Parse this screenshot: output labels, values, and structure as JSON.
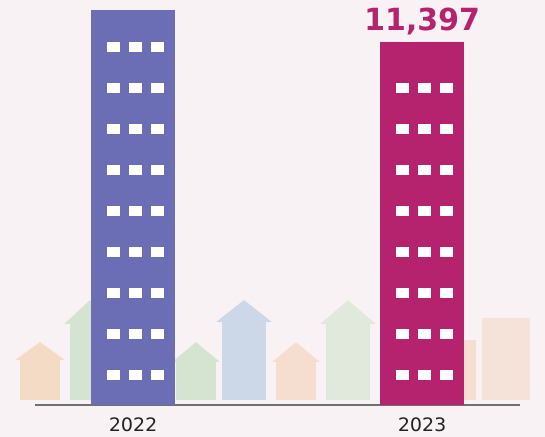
{
  "chart_data": {
    "type": "bar",
    "categories": [
      "2022",
      "2023"
    ],
    "values": [
      12400,
      11397
    ],
    "value_labels": [
      null,
      "11,397"
    ],
    "colors": [
      "#6b6db5",
      "#b5236f"
    ],
    "label_color": "#b5236f"
  }
}
